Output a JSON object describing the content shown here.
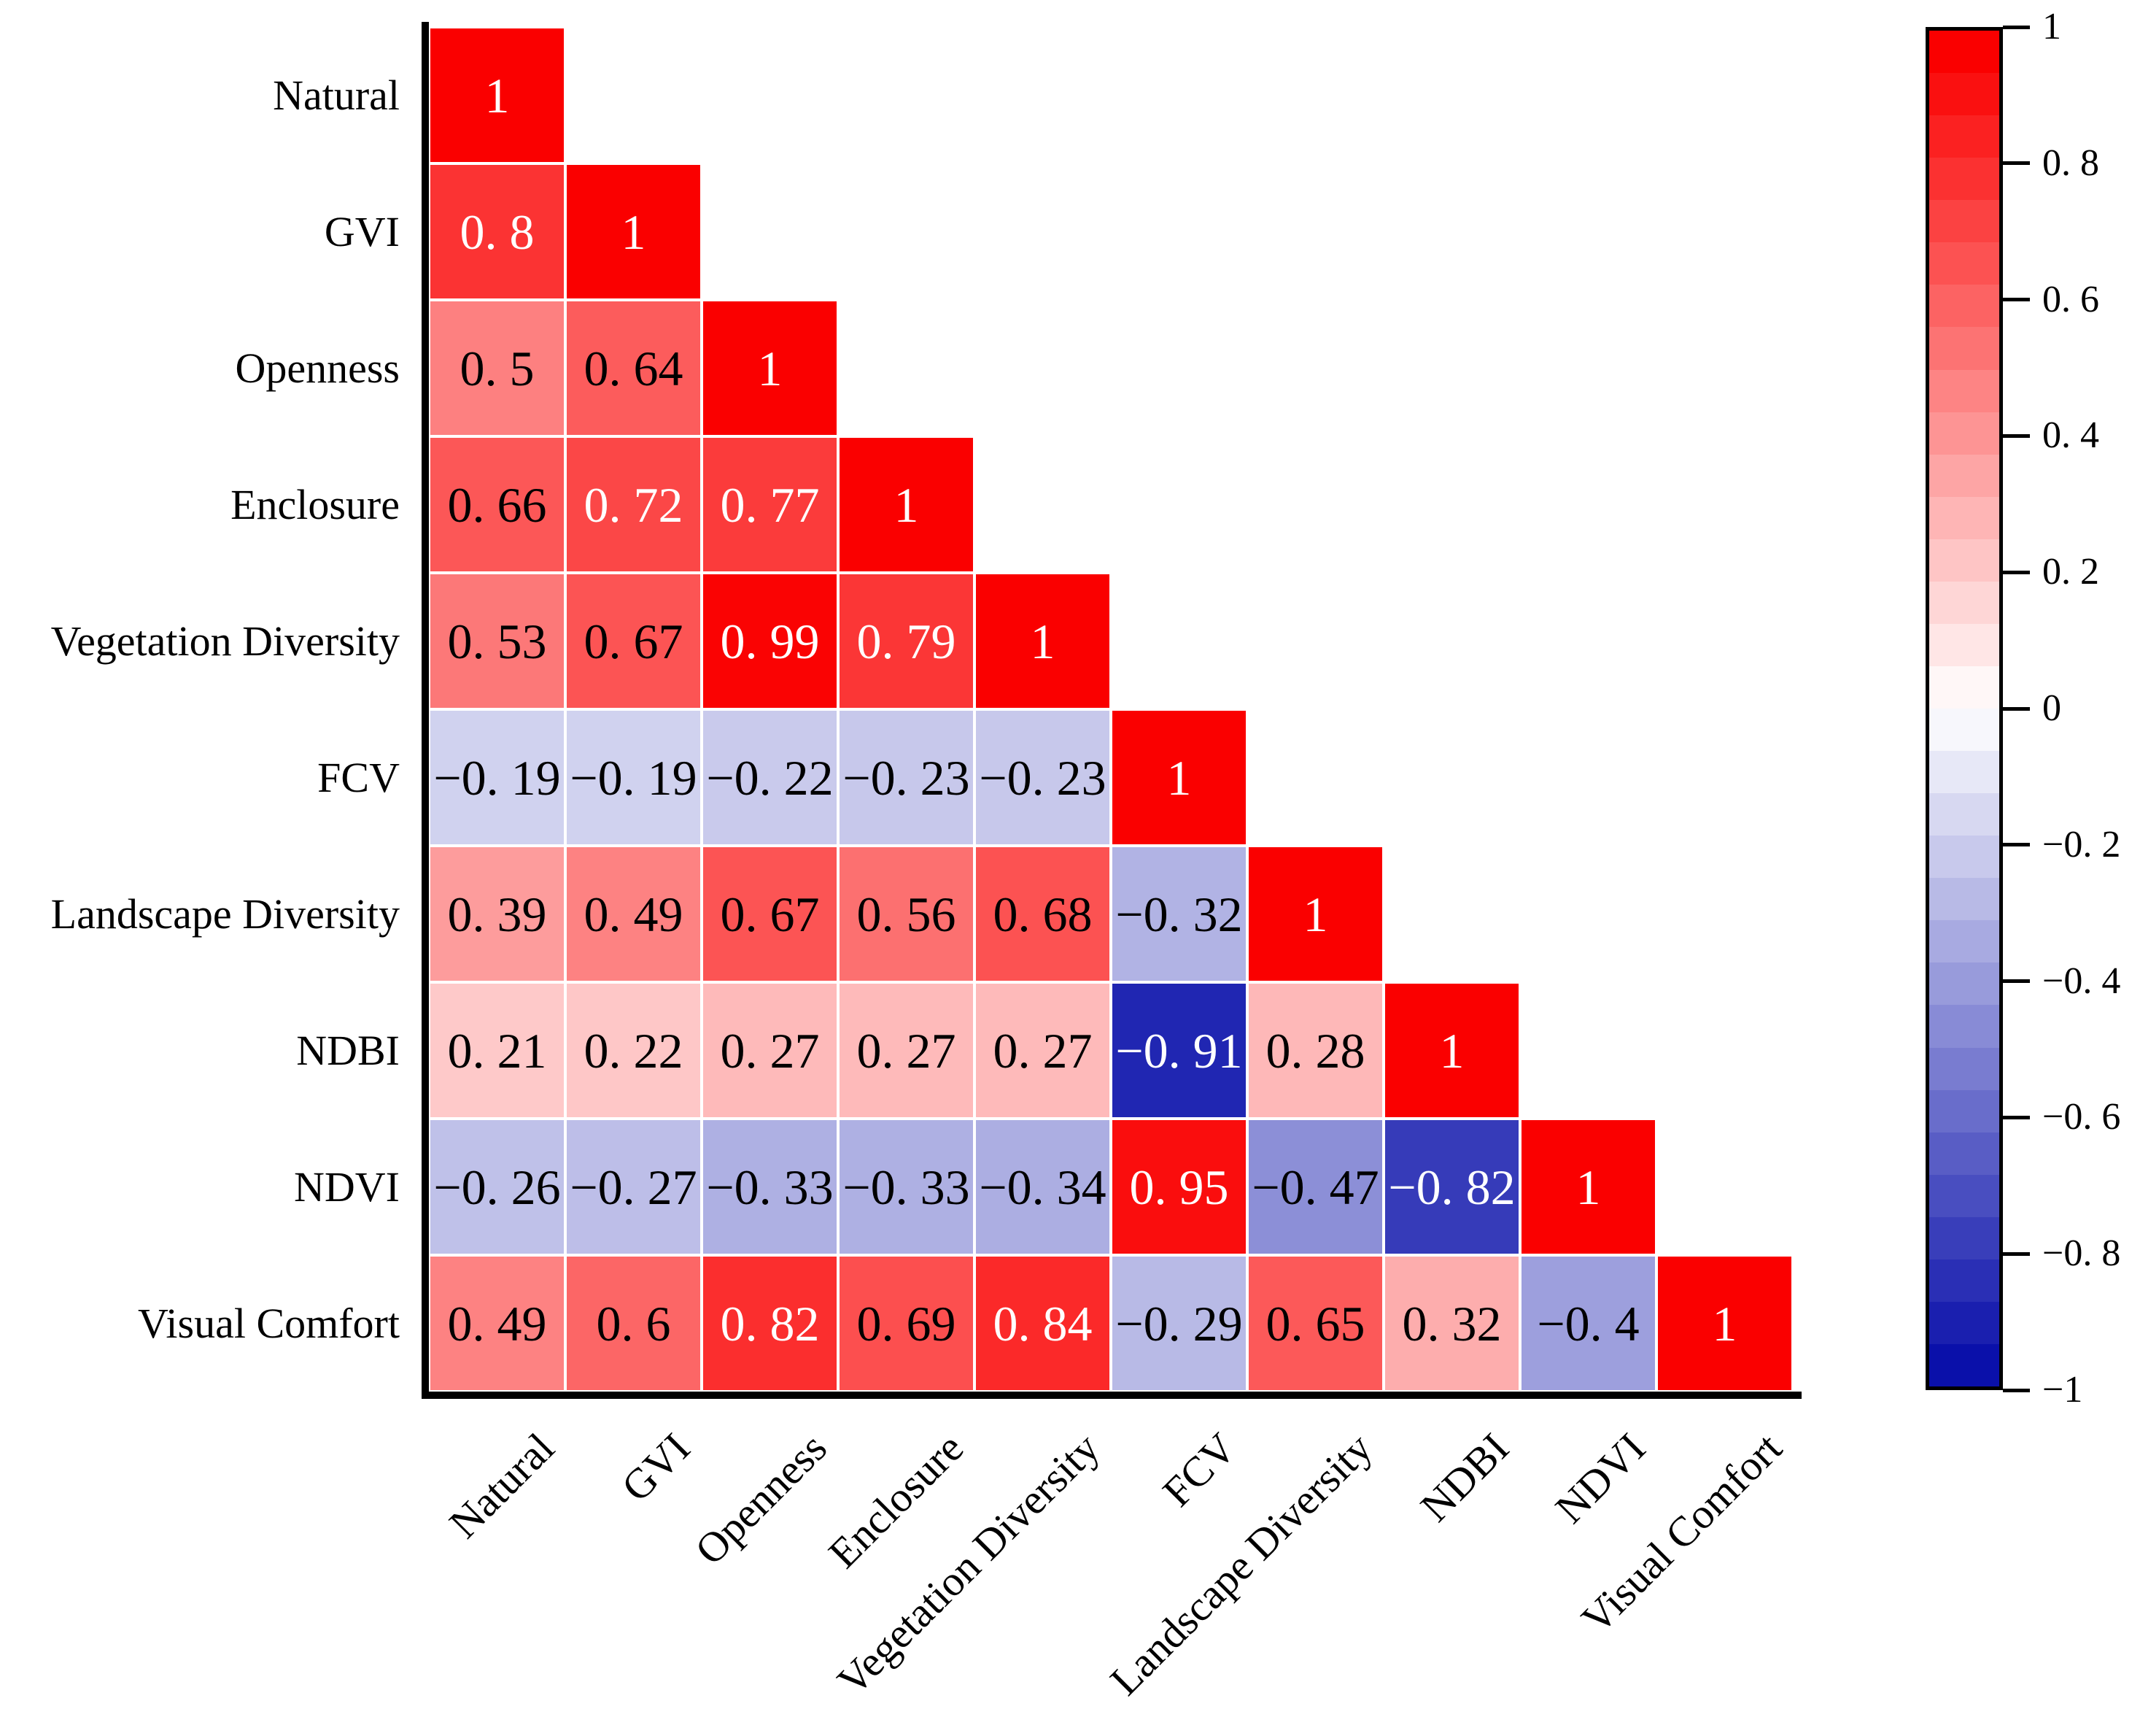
{
  "chart_data": {
    "type": "heatmap",
    "subtype": "correlation-matrix-lower-triangle",
    "title": "",
    "categories": [
      "Natural",
      "GVI",
      "Openness",
      "Enclosure",
      "Vegetation Diversity",
      "FCV",
      "Landscape Diversity",
      "NDBI",
      "NDVI",
      "Visual Comfort"
    ],
    "matrix": [
      [
        1
      ],
      [
        0.8,
        1
      ],
      [
        0.5,
        0.64,
        1
      ],
      [
        0.66,
        0.72,
        0.77,
        1
      ],
      [
        0.53,
        0.67,
        0.99,
        0.79,
        1
      ],
      [
        -0.19,
        -0.19,
        -0.22,
        -0.23,
        -0.23,
        1
      ],
      [
        0.39,
        0.49,
        0.67,
        0.56,
        0.68,
        -0.32,
        1
      ],
      [
        0.21,
        0.22,
        0.27,
        0.27,
        0.27,
        -0.91,
        0.28,
        1
      ],
      [
        -0.26,
        -0.27,
        -0.33,
        -0.33,
        -0.34,
        0.95,
        -0.47,
        -0.82,
        1
      ],
      [
        0.49,
        0.6,
        0.82,
        0.69,
        0.84,
        -0.29,
        0.65,
        0.32,
        -0.4,
        1
      ]
    ],
    "value_range": [
      -1,
      1
    ],
    "colorbar": {
      "position": "right",
      "ticks": [
        1,
        0.8,
        0.6,
        0.4,
        0.2,
        0,
        -0.2,
        -0.4,
        -0.6,
        -0.8,
        -1
      ]
    },
    "colors": {
      "positive_max": "#fa0000",
      "zero": "#ffffff",
      "negative_max": "#0a10aa",
      "grid_line": "#ffffff",
      "axis_line": "#000000",
      "value_text_dark": "#000000",
      "value_text_light": "#ffffff"
    },
    "value_text_white_threshold": 0.7,
    "grid": false,
    "legend_position": "right"
  }
}
